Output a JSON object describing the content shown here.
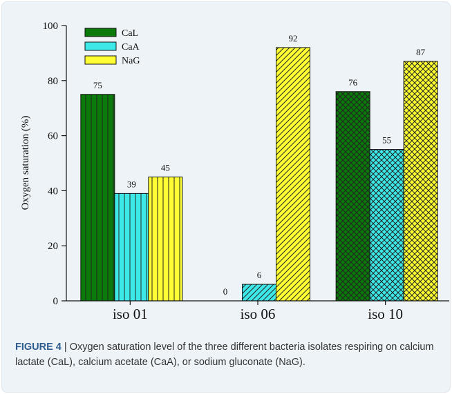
{
  "chart_data": {
    "type": "bar",
    "categories": [
      "iso 01",
      "iso 06",
      "iso 10"
    ],
    "series": [
      {
        "name": "CaL",
        "values": [
          75,
          0,
          76
        ],
        "color": "#0a7a0a",
        "pattern": "vertical-lines"
      },
      {
        "name": "CaA",
        "values": [
          39,
          6,
          55
        ],
        "color": "#3de8e8",
        "pattern": "vertical-lines"
      },
      {
        "name": "NaG",
        "values": [
          45,
          92,
          87
        ],
        "color": "#ffff33",
        "pattern": "vertical-lines"
      }
    ],
    "patterns_by_category": [
      "vertical-lines",
      "diagonal-lines",
      "crosshatch"
    ],
    "ylabel": "Oxygen saturation (%)",
    "xlabel": "",
    "ylim": [
      0,
      100
    ],
    "yticks": [
      0,
      20,
      40,
      60,
      80,
      100
    ],
    "data_labels": true,
    "legend_placement": "top-left",
    "grid": false
  },
  "caption": {
    "label": "FIGURE 4",
    "text": " | Oxygen saturation level of the three different bacteria isolates respiring on calcium lactate (CaL), calcium acetate (CaA), or sodium gluconate (NaG)."
  }
}
